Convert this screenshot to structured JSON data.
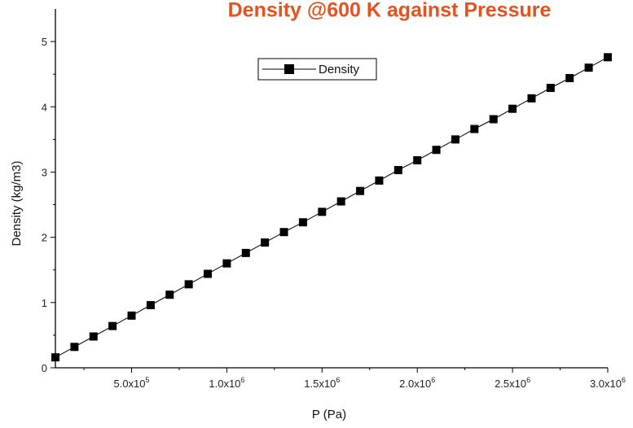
{
  "chart_data": {
    "type": "line",
    "title": "Density @600 K against Pressure",
    "title_color": "#E8501E",
    "xlabel": "P (Pa)",
    "ylabel": "Density (kg/m3)",
    "xlim": [
      100000,
      3000000
    ],
    "ylim": [
      0,
      5.5
    ],
    "x_ticks": [
      500000,
      1000000,
      1500000,
      2000000,
      2500000,
      3000000
    ],
    "x_tick_labels": [
      {
        "mantissa": "5.0x10",
        "exp": "5"
      },
      {
        "mantissa": "1.0x10",
        "exp": "6"
      },
      {
        "mantissa": "1.5x10",
        "exp": "6"
      },
      {
        "mantissa": "2.0x10",
        "exp": "6"
      },
      {
        "mantissa": "2.5x10",
        "exp": "6"
      },
      {
        "mantissa": "3.0x10",
        "exp": "6"
      }
    ],
    "y_ticks": [
      0,
      1,
      2,
      3,
      4,
      5
    ],
    "y_tick_labels": [
      "0",
      "1",
      "2",
      "3",
      "4",
      "5"
    ],
    "grid": false,
    "legend_position": "top-center",
    "marker": "square",
    "series": [
      {
        "name": "Density",
        "color": "#000000",
        "x": [
          100000,
          200000,
          300000,
          400000,
          500000,
          600000,
          700000,
          800000,
          900000,
          1000000,
          1100000,
          1200000,
          1300000,
          1400000,
          1500000,
          1600000,
          1700000,
          1800000,
          1900000,
          2000000,
          2100000,
          2200000,
          2300000,
          2400000,
          2500000,
          2600000,
          2700000,
          2800000,
          2900000,
          3000000
        ],
        "y": [
          0.16,
          0.32,
          0.48,
          0.64,
          0.8,
          0.96,
          1.12,
          1.28,
          1.44,
          1.6,
          1.76,
          1.92,
          2.08,
          2.23,
          2.39,
          2.55,
          2.71,
          2.87,
          3.03,
          3.18,
          3.34,
          3.5,
          3.66,
          3.81,
          3.97,
          4.13,
          4.29,
          4.44,
          4.6,
          4.76
        ]
      }
    ]
  }
}
